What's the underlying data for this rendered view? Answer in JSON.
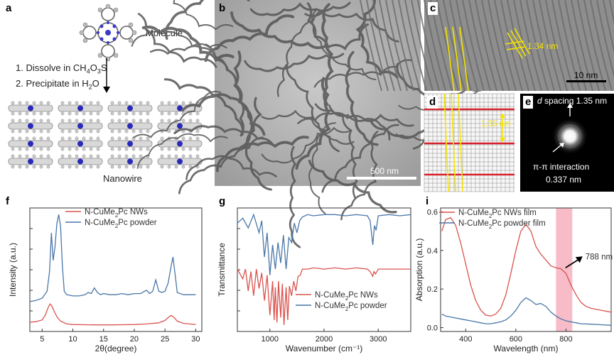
{
  "panels": {
    "a": {
      "label": "a",
      "molecule_label": "Molecule",
      "step1": "1. Dissolve in CH",
      "step1_sub1": "4",
      "step1_mid": "O",
      "step1_sub2": "3",
      "step1_end": "S",
      "step2": "2. Precipitate in H",
      "step2_sub": "2",
      "step2_end": "O",
      "nanowire_label": "Nanowire"
    },
    "b": {
      "label": "b",
      "scalebar": "500 nm"
    },
    "c": {
      "label": "c",
      "spacing": "1.34 nm",
      "scalebar": "10 nm"
    },
    "d": {
      "label": "d",
      "spacing": "1.35 nm"
    },
    "e": {
      "label": "e",
      "d_italic": "d",
      "d_spacing": "spacing 1.35 nm",
      "pi_label": "π-π interaction",
      "pi_value": "0.337 nm"
    },
    "f": {
      "label": "f"
    },
    "g": {
      "label": "g"
    },
    "i": {
      "label": "i",
      "annotation": "788 nm"
    }
  },
  "colors": {
    "red": "#d9534f",
    "blue": "#4a77a8",
    "highlight": "#f4a6b4",
    "yellow": "#f5e400"
  },
  "chart_data": [
    {
      "id": "f",
      "type": "line",
      "xlabel": "2θ(degree)",
      "ylabel": "Intensity (a.u.)",
      "xlim": [
        3,
        31
      ],
      "xticks": [
        5,
        10,
        15,
        20,
        25,
        30
      ],
      "series": [
        {
          "name_pre": "N-CuMe",
          "name_sub": "2",
          "name_post": "Pc NWs",
          "color": "red",
          "x": [
            3,
            4,
            5,
            5.5,
            6,
            6.3,
            6.6,
            7,
            7.5,
            8,
            9,
            10,
            12,
            14,
            16,
            18,
            20,
            22,
            24,
            25,
            25.5,
            26,
            26.5,
            27,
            28,
            29,
            30
          ],
          "y": [
            0.06,
            0.065,
            0.08,
            0.12,
            0.19,
            0.22,
            0.2,
            0.15,
            0.1,
            0.07,
            0.045,
            0.04,
            0.038,
            0.037,
            0.037,
            0.038,
            0.04,
            0.045,
            0.055,
            0.075,
            0.1,
            0.12,
            0.1,
            0.07,
            0.05,
            0.045,
            0.04
          ]
        },
        {
          "name_pre": "N-CuMe",
          "name_sub": "2",
          "name_post": "Pc powder",
          "color": "blue",
          "x": [
            3,
            4,
            5,
            5.8,
            6.2,
            6.5,
            6.8,
            7.1,
            7.4,
            7.7,
            8,
            8.3,
            8.6,
            9,
            10,
            11,
            12,
            12.5,
            13,
            13.5,
            14,
            14.5,
            15,
            16,
            17,
            18,
            19,
            20,
            21,
            22,
            22.5,
            23,
            23.5,
            24,
            24.5,
            25,
            25.5,
            26,
            26.3,
            26.6,
            27,
            28,
            29,
            30
          ],
          "y": [
            0.24,
            0.25,
            0.27,
            0.33,
            0.5,
            0.84,
            0.6,
            0.72,
            0.92,
            1.0,
            0.9,
            0.55,
            0.33,
            0.3,
            0.29,
            0.29,
            0.3,
            0.32,
            0.31,
            0.36,
            0.32,
            0.3,
            0.31,
            0.3,
            0.3,
            0.31,
            0.3,
            0.31,
            0.31,
            0.34,
            0.31,
            0.33,
            0.43,
            0.33,
            0.32,
            0.33,
            0.4,
            0.55,
            0.63,
            0.5,
            0.32,
            0.3,
            0.3,
            0.3
          ]
        }
      ]
    },
    {
      "id": "g",
      "type": "line",
      "xlabel": "Wavenumber (cm⁻¹)",
      "ylabel": "Transmittance",
      "xlim": [
        400,
        3600
      ],
      "xticks": [
        1000,
        2000,
        3000
      ],
      "series": [
        {
          "name_pre": "N-CuMe",
          "name_sub": "2",
          "name_post": "Pc NWs",
          "color": "red",
          "x": [
            400,
            500,
            550,
            600,
            650,
            700,
            750,
            800,
            850,
            900,
            950,
            1000,
            1050,
            1080,
            1100,
            1130,
            1160,
            1200,
            1230,
            1260,
            1300,
            1330,
            1360,
            1400,
            1440,
            1480,
            1520,
            1560,
            1600,
            1700,
            1800,
            2000,
            2200,
            2400,
            2600,
            2800,
            2850,
            2900,
            2920,
            2950,
            3000,
            3200,
            3400,
            3600
          ],
          "y": [
            0.5,
            0.42,
            0.5,
            0.32,
            0.48,
            0.28,
            0.5,
            0.34,
            0.47,
            0.24,
            0.45,
            0.12,
            0.4,
            0.08,
            0.35,
            0.06,
            0.4,
            0.1,
            0.38,
            0.04,
            0.35,
            0.08,
            0.36,
            0.28,
            0.4,
            0.32,
            0.44,
            0.45,
            0.5,
            0.5,
            0.51,
            0.5,
            0.51,
            0.5,
            0.51,
            0.5,
            0.48,
            0.44,
            0.48,
            0.46,
            0.5,
            0.5,
            0.5,
            0.5
          ]
        },
        {
          "name_pre": "N-CuMe",
          "name_sub": "2",
          "name_post": "Pc powder",
          "color": "blue",
          "x": [
            400,
            500,
            600,
            700,
            800,
            850,
            900,
            950,
            1000,
            1050,
            1100,
            1150,
            1200,
            1250,
            1300,
            1350,
            1400,
            1450,
            1500,
            1550,
            1600,
            1700,
            1800,
            2000,
            2200,
            2400,
            2600,
            2800,
            2850,
            2900,
            2930,
            2960,
            3000,
            3200,
            3400,
            3600
          ],
          "y": [
            0.88,
            0.92,
            0.84,
            0.95,
            0.8,
            0.9,
            0.6,
            0.8,
            0.45,
            0.7,
            0.5,
            0.72,
            0.55,
            0.78,
            0.5,
            0.76,
            0.72,
            0.88,
            0.8,
            0.9,
            0.93,
            0.95,
            0.94,
            0.95,
            0.95,
            0.94,
            0.95,
            0.94,
            0.9,
            0.7,
            0.86,
            0.82,
            0.94,
            0.95,
            0.94,
            0.95
          ]
        }
      ]
    },
    {
      "id": "i",
      "type": "line",
      "xlabel": "Wavelength (nm)",
      "ylabel": "Absorption (a.u.)",
      "xlim": [
        300,
        980
      ],
      "ylim": [
        -0.02,
        0.62
      ],
      "xticks": [
        400,
        600,
        800
      ],
      "yticks": [
        0.0,
        0.2,
        0.4,
        0.6
      ],
      "highlight": [
        760,
        825
      ],
      "series": [
        {
          "name_pre": "N-CuMe",
          "name_sub": "2",
          "name_post": "Pc NWs film",
          "color": "red",
          "x": [
            305,
            320,
            340,
            360,
            380,
            400,
            420,
            440,
            460,
            480,
            500,
            520,
            540,
            560,
            580,
            600,
            620,
            640,
            660,
            680,
            700,
            720,
            740,
            760,
            780,
            800,
            820,
            840,
            860,
            880,
            900,
            940,
            980
          ],
          "y": [
            0.5,
            0.56,
            0.57,
            0.53,
            0.44,
            0.33,
            0.22,
            0.14,
            0.09,
            0.065,
            0.06,
            0.07,
            0.1,
            0.17,
            0.28,
            0.4,
            0.5,
            0.535,
            0.5,
            0.42,
            0.38,
            0.35,
            0.32,
            0.31,
            0.305,
            0.28,
            0.22,
            0.17,
            0.13,
            0.11,
            0.1,
            0.09,
            0.08
          ]
        },
        {
          "name_pre": "N-CuMe",
          "name_sub": "2",
          "name_post": "Pc powder film",
          "color": "blue",
          "x": [
            305,
            320,
            340,
            360,
            380,
            400,
            420,
            440,
            460,
            480,
            500,
            520,
            540,
            560,
            580,
            600,
            620,
            640,
            660,
            680,
            700,
            720,
            740,
            760,
            780,
            800,
            820,
            840,
            860,
            900,
            940,
            980
          ],
          "y": [
            0.07,
            0.06,
            0.055,
            0.05,
            0.045,
            0.04,
            0.035,
            0.03,
            0.025,
            0.02,
            0.02,
            0.025,
            0.03,
            0.04,
            0.06,
            0.09,
            0.13,
            0.155,
            0.14,
            0.12,
            0.125,
            0.11,
            0.08,
            0.06,
            0.045,
            0.035,
            0.03,
            0.025,
            0.02,
            0.018,
            0.015,
            0.012
          ]
        }
      ]
    }
  ]
}
